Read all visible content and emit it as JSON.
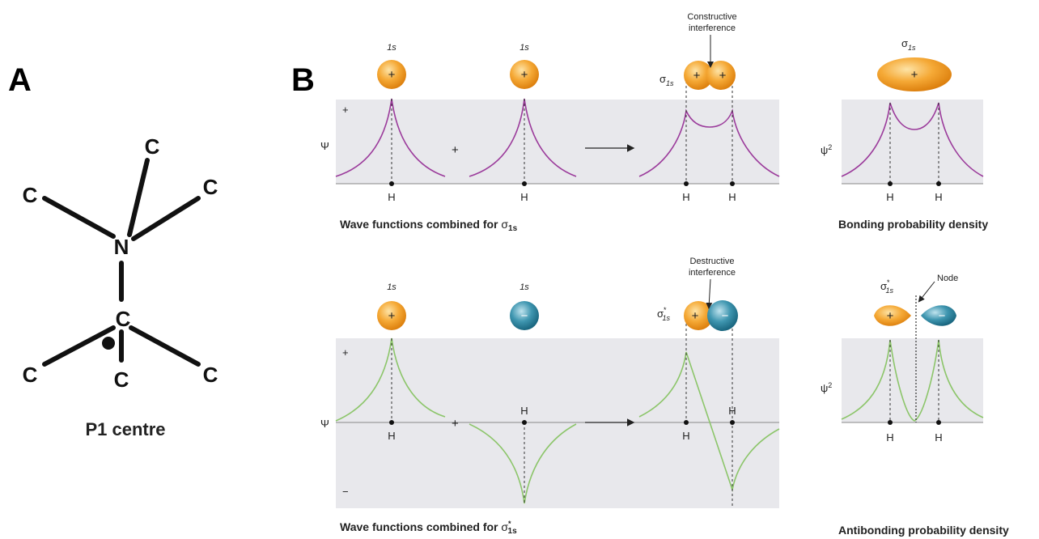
{
  "panel_a": {
    "label": "A",
    "atoms": {
      "n": "N",
      "c": [
        "C",
        "C",
        "C",
        "C",
        "C",
        "C",
        "C"
      ]
    },
    "caption": "P1 centre"
  },
  "panel_b": {
    "label": "B",
    "bonding": {
      "orbitals": [
        {
          "label": "1s",
          "sign": "+"
        },
        {
          "label": "1s",
          "sign": "+"
        }
      ],
      "combined": {
        "symbol": "σ",
        "subscript": "1s",
        "signs": [
          "+",
          "+"
        ]
      },
      "interference": [
        "Constructive",
        "interference"
      ],
      "axis": "Ψ",
      "axis_plus": "+",
      "operator": "+",
      "atom_labels": [
        "H",
        "H",
        "H",
        "H",
        "H",
        "H"
      ],
      "caption": {
        "text": "Wave functions combined for ",
        "symbol": "σ",
        "subscript": "1s"
      },
      "density": {
        "symbol": "σ",
        "subscript": "1s",
        "sign": "+",
        "axis": "ψ",
        "axis_power": "2",
        "caption": "Bonding probability density"
      }
    },
    "antibonding": {
      "orbitals": [
        {
          "label": "1s",
          "sign": "+"
        },
        {
          "label": "1s",
          "sign": "−"
        }
      ],
      "combined": {
        "symbol": "σ",
        "superscript": "*",
        "subscript": "1s",
        "signs": [
          "+",
          "−"
        ]
      },
      "interference": [
        "Destructive",
        "interference"
      ],
      "axis": "Ψ",
      "axis_plus": "+",
      "axis_minus": "−",
      "operator": "+",
      "atom_labels": [
        "H",
        "H",
        "H",
        "H",
        "H",
        "H"
      ],
      "caption": {
        "text": "Wave functions combined for ",
        "symbol": "σ",
        "superscript": "*",
        "subscript": "1s"
      },
      "density": {
        "symbol": "σ",
        "superscript": "*",
        "subscript": "1s",
        "signs": [
          "+",
          "−"
        ],
        "node": "Node",
        "axis": "ψ",
        "axis_power": "2",
        "caption": "Antibonding probability density"
      }
    }
  }
}
